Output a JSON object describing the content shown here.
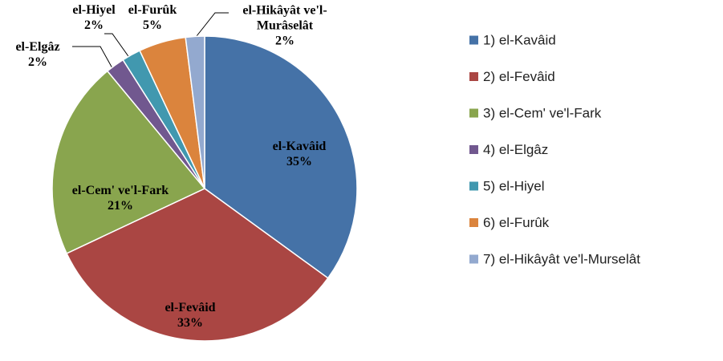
{
  "chart_data": {
    "type": "pie",
    "categories": [
      "1) el-Kavâid",
      "2) el-Fevâid",
      "3) el-Cem' ve'l-Fark",
      "4) el-Elgâz",
      "5) el-Hiyel",
      "6) el-Furûk",
      "7) el-Hikâyât ve'l-Murselât"
    ],
    "labels": [
      "el-Kavâid",
      "el-Fevâid",
      "el-Cem' ve'l-Fark",
      "el-Elgâz",
      "el-Hiyel",
      "el-Furûk",
      "el-Hikâyât ve'l-Murâselât"
    ],
    "values": [
      35,
      33,
      21,
      2,
      2,
      5,
      2
    ],
    "value_labels": [
      "35%",
      "33%",
      "21%",
      "2%",
      "2%",
      "5%",
      "2%"
    ],
    "colors": [
      "#4572a7",
      "#aa4643",
      "#89a54e",
      "#71588f",
      "#4198af",
      "#db843d",
      "#93a9cf"
    ],
    "legend": "right"
  }
}
